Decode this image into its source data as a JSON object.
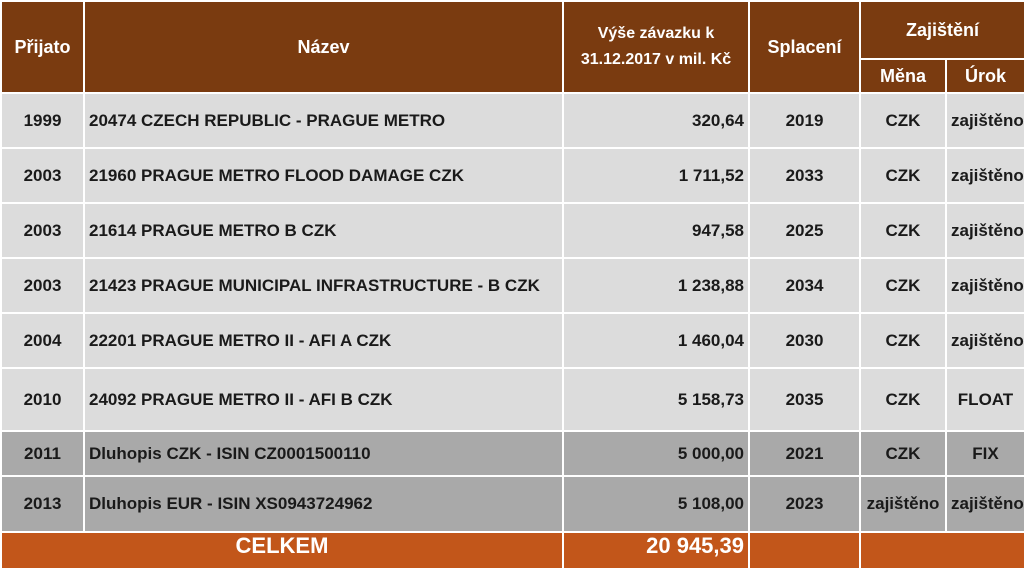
{
  "header": {
    "prijato": "Přijato",
    "nazev": "Název",
    "vyse_line1": "Výše závazku k",
    "vyse_line2": "31.12.2017 v mil. Kč",
    "splaceni": "Splacení",
    "zajisteni": "Zajištění",
    "mena": "Měna",
    "urok": "Úrok"
  },
  "rows": [
    {
      "prijato": "1999",
      "nazev": "20474 CZECH REPUBLIC - PRAGUE METRO",
      "vyse": "320,64",
      "splaceni": "2019",
      "mena": "CZK",
      "urok": "zajištěno"
    },
    {
      "prijato": "2003",
      "nazev": "21960 PRAGUE METRO FLOOD DAMAGE CZK",
      "vyse": "1 711,52",
      "splaceni": "2033",
      "mena": "CZK",
      "urok": "zajištěno"
    },
    {
      "prijato": "2003",
      "nazev": "21614 PRAGUE METRO B CZK",
      "vyse": "947,58",
      "splaceni": "2025",
      "mena": "CZK",
      "urok": "zajištěno"
    },
    {
      "prijato": "2003",
      "nazev": "21423 PRAGUE MUNICIPAL INFRASTRUCTURE - B CZK",
      "vyse": "1 238,88",
      "splaceni": "2034",
      "mena": "CZK",
      "urok": "zajištěno"
    },
    {
      "prijato": "2004",
      "nazev": "22201 PRAGUE METRO II - AFI A CZK",
      "vyse": "1 460,04",
      "splaceni": "2030",
      "mena": "CZK",
      "urok": "zajištěno"
    },
    {
      "prijato": "2010",
      "nazev": "24092 PRAGUE METRO II - AFI B CZK",
      "vyse": "5 158,73",
      "splaceni": "2035",
      "mena": "CZK",
      "urok": "FLOAT"
    },
    {
      "prijato": "2011",
      "nazev": "Dluhopis  CZK - ISIN CZ0001500110",
      "vyse": "5 000,00",
      "splaceni": "2021",
      "mena": "CZK",
      "urok": "FIX"
    },
    {
      "prijato": "2013",
      "nazev": "Dluhopis EUR -  ISIN XS0943724962",
      "vyse": "5 108,00",
      "splaceni": "2023",
      "mena": "zajištěno",
      "urok": "zajištěno"
    }
  ],
  "total": {
    "label": "CELKEM",
    "value": "20 945,39"
  },
  "colors": {
    "header_bg": "#7a3b10",
    "row_light": "#dcdcdc",
    "row_dark": "#a9a9a9",
    "total_bg": "#c2561a"
  }
}
